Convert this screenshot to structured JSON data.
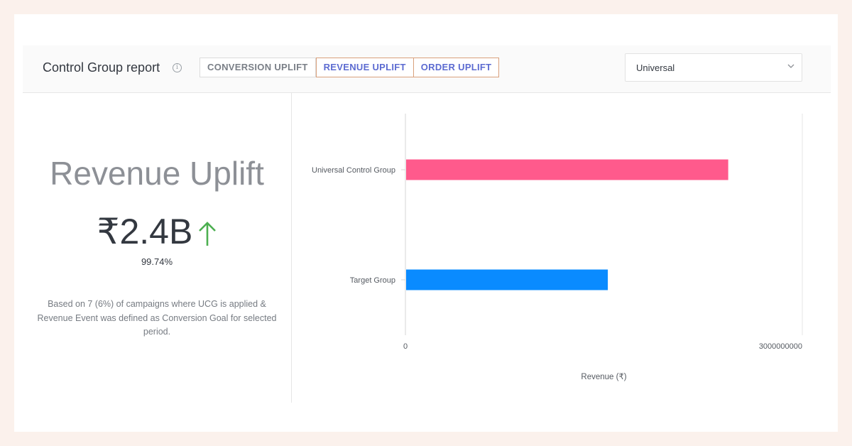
{
  "header": {
    "title": "Control Group report",
    "info_icon": "info-icon",
    "tabs": [
      {
        "label": "CONVERSION UPLIFT",
        "active": false
      },
      {
        "label": "REVENUE UPLIFT",
        "active": true
      },
      {
        "label": "ORDER UPLIFT",
        "active": false
      }
    ],
    "select": {
      "value": "Universal",
      "icon": "chevron-down-icon"
    }
  },
  "summary": {
    "heading": "Revenue Uplift",
    "value": "₹2.4B",
    "trend_icon": "arrow-up-icon",
    "percent": "99.74%",
    "note": "Based on 7 (6%) of campaigns where UCG is applied & Revenue Event was defined as Conversion Goal for selected period."
  },
  "colors": {
    "accent": "#5c6bd1",
    "ucg_bar": "#ff5a8c",
    "target_bar": "#0a8bff",
    "up_arrow": "#4caf50"
  },
  "chart_data": {
    "type": "bar",
    "orientation": "horizontal",
    "categories": [
      "Universal Control Group",
      "Target Group"
    ],
    "values": [
      2440000000,
      1530000000
    ],
    "xlabel": "Revenue (₹)",
    "xlim": [
      0,
      3000000000
    ],
    "xticks": [
      "0",
      "3000000000"
    ],
    "grid": false
  }
}
